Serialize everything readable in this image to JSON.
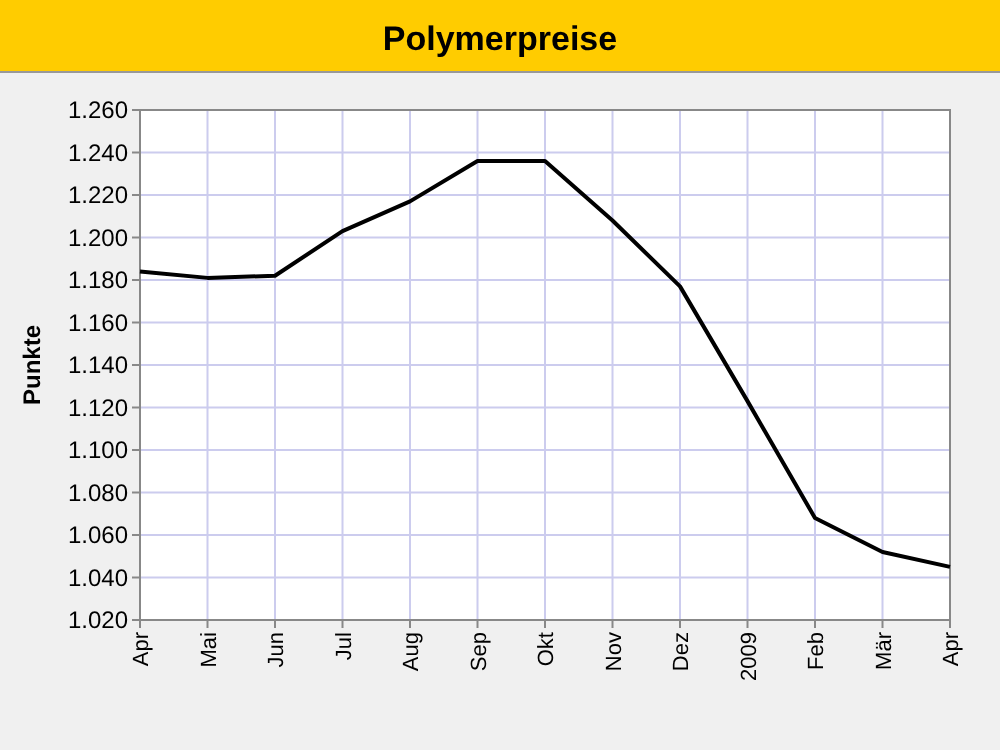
{
  "chart_data": {
    "type": "line",
    "title": "Polymerpreise",
    "ylabel": "Punkte",
    "categories": [
      "Apr",
      "Mai",
      "Jun",
      "Jul",
      "Aug",
      "Sep",
      "Okt",
      "Nov",
      "Dez",
      "2009",
      "Feb",
      "Mär",
      "Apr"
    ],
    "series": [
      {
        "color": "#000000",
        "values": [
          1184,
          1181,
          1182,
          1203,
          1217,
          1236,
          1236,
          1208,
          1177,
          1123,
          1068,
          1052,
          1045
        ]
      }
    ],
    "ylim": [
      1020,
      1260
    ],
    "yticks": [
      {
        "value": 1020,
        "label": "1.020"
      },
      {
        "value": 1040,
        "label": "1.040"
      },
      {
        "value": 1060,
        "label": "1.060"
      },
      {
        "value": 1080,
        "label": "1.080"
      },
      {
        "value": 1100,
        "label": "1.100"
      },
      {
        "value": 1120,
        "label": "1.120"
      },
      {
        "value": 1140,
        "label": "1.140"
      },
      {
        "value": 1160,
        "label": "1.160"
      },
      {
        "value": 1180,
        "label": "1.180"
      },
      {
        "value": 1200,
        "label": "1.200"
      },
      {
        "value": 1220,
        "label": "1.220"
      },
      {
        "value": 1240,
        "label": "1.240"
      },
      {
        "value": 1260,
        "label": "1.260"
      }
    ],
    "grid": true,
    "marker": "none",
    "line_style": "solid"
  }
}
